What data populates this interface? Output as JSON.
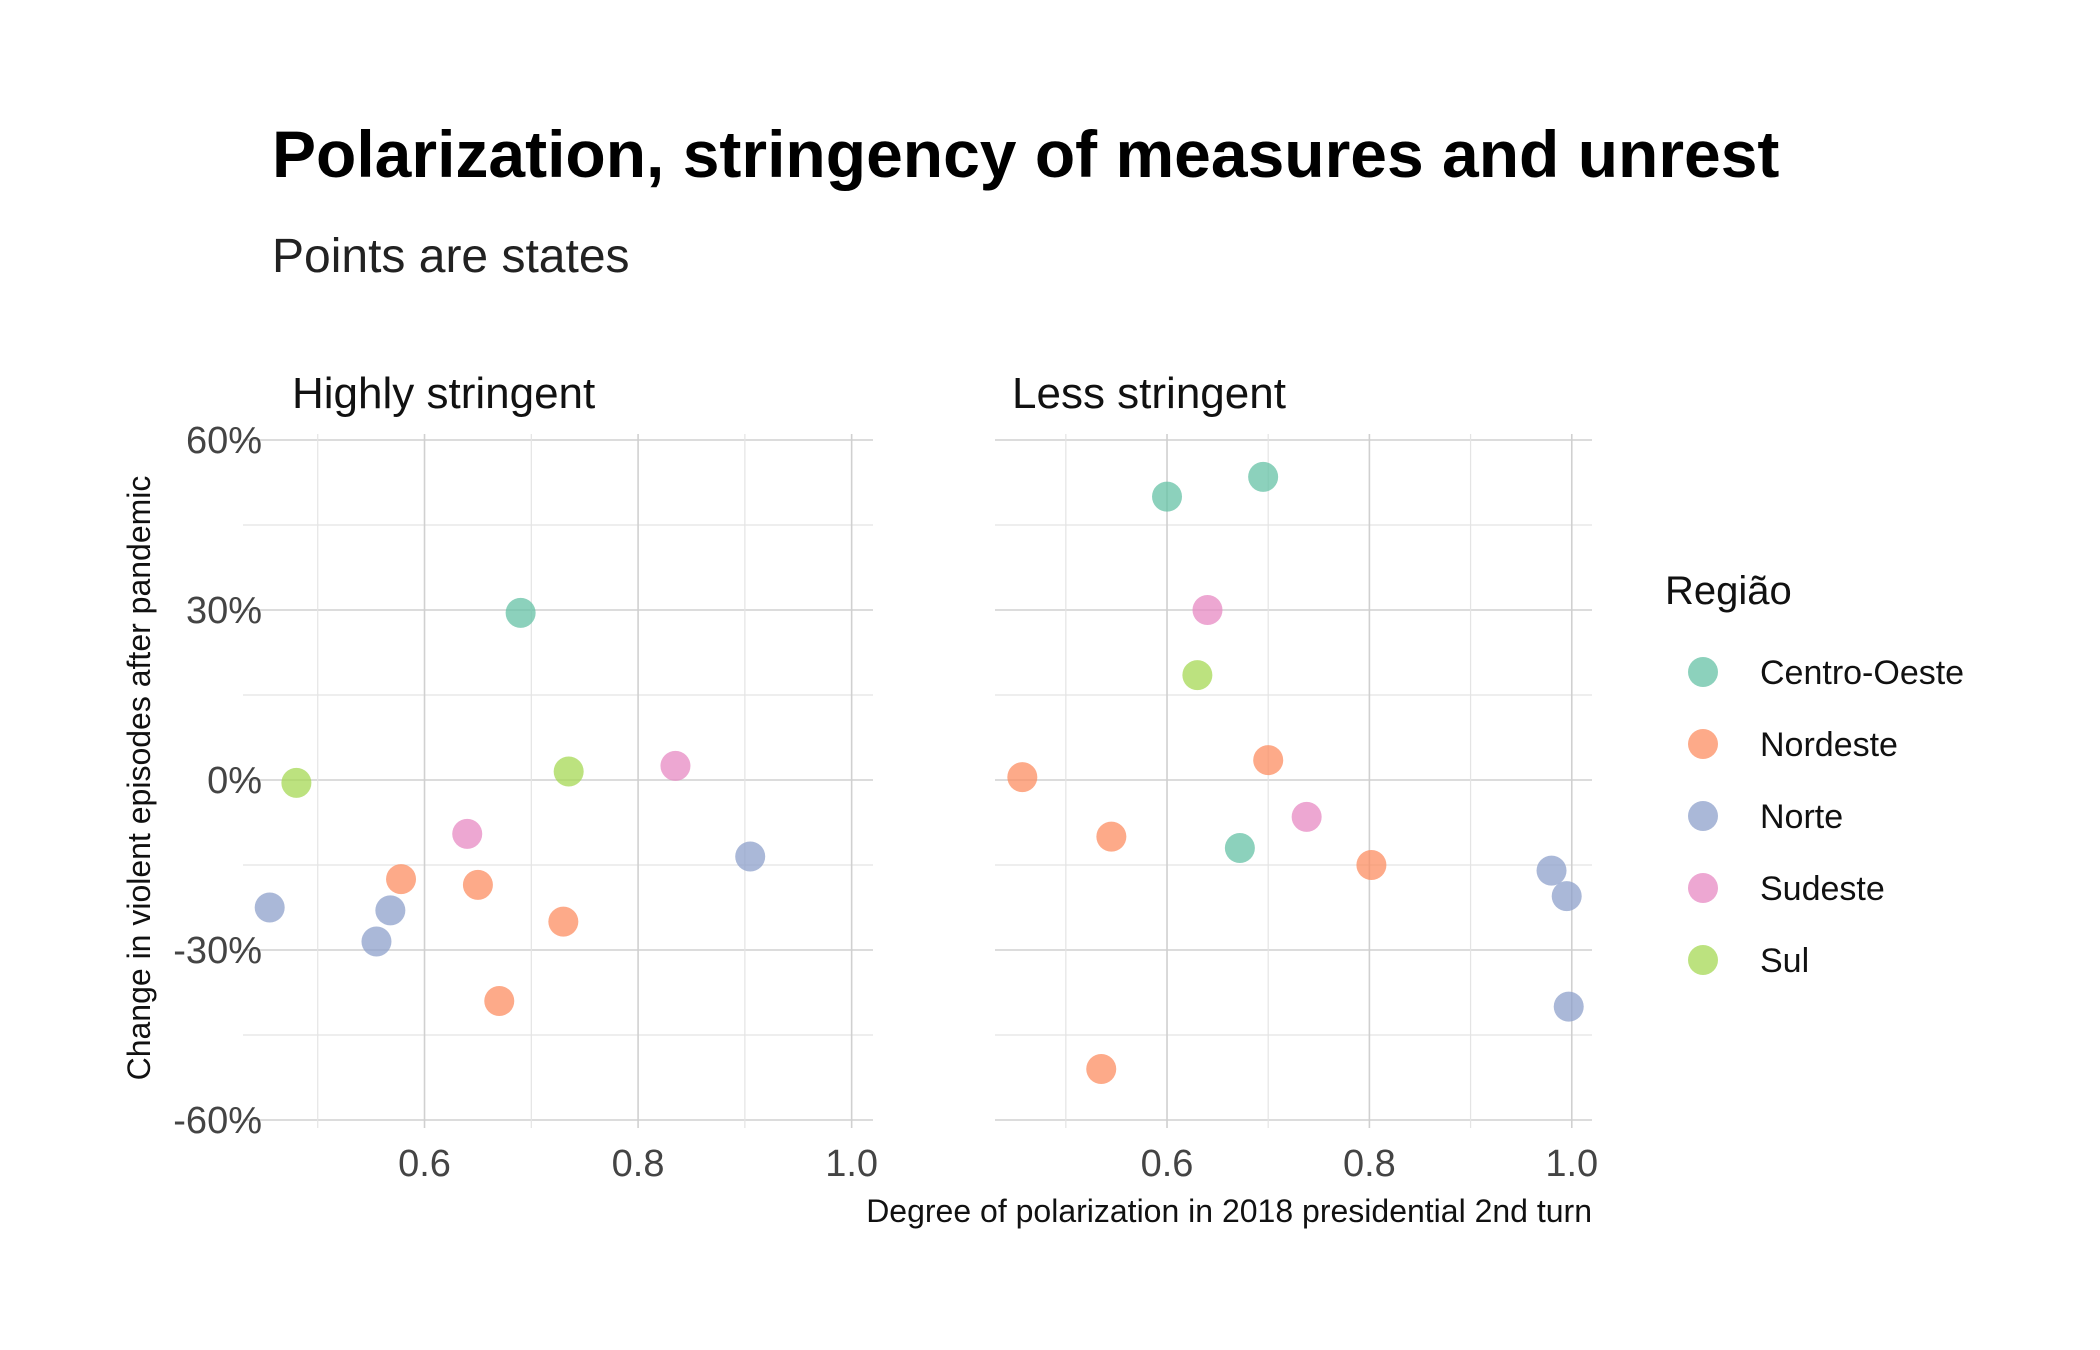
{
  "chart_data": {
    "type": "scatter",
    "title": "Polarization, stringency of measures and unrest",
    "subtitle": "Points are states",
    "xlabel": "Degree of polarization in 2018 presidential 2nd turn",
    "ylabel": "Change in violent episodes after pandemic",
    "xlim": [
      0.43,
      1.02
    ],
    "ylim": [
      -0.6,
      0.6
    ],
    "x_ticks": [
      0.6,
      0.8,
      1.0
    ],
    "x_tick_labels": [
      "0.6",
      "0.8",
      "1.0"
    ],
    "y_ticks": [
      -0.6,
      -0.3,
      0,
      0.3,
      0.6
    ],
    "y_tick_labels": [
      "-60%",
      "-30%",
      "0%",
      "30%",
      "60%"
    ],
    "grid": true,
    "legend": {
      "title": "Região",
      "placement": "right",
      "items": [
        {
          "name": "Centro-Oeste",
          "color": "#66c2a5"
        },
        {
          "name": "Nordeste",
          "color": "#fc8d62"
        },
        {
          "name": "Norte",
          "color": "#8da0cb"
        },
        {
          "name": "Sudeste",
          "color": "#e78ac3"
        },
        {
          "name": "Sul",
          "color": "#a6d854"
        }
      ]
    },
    "panels": [
      {
        "label": "Highly stringent",
        "points": [
          {
            "x": 0.69,
            "y": 0.295,
            "region": "Centro-Oeste"
          },
          {
            "x": 0.48,
            "y": -0.005,
            "region": "Sul"
          },
          {
            "x": 0.735,
            "y": 0.015,
            "region": "Sul"
          },
          {
            "x": 0.835,
            "y": 0.025,
            "region": "Sudeste"
          },
          {
            "x": 0.64,
            "y": -0.095,
            "region": "Sudeste"
          },
          {
            "x": 0.905,
            "y": -0.135,
            "region": "Norte"
          },
          {
            "x": 0.578,
            "y": -0.175,
            "region": "Nordeste"
          },
          {
            "x": 0.65,
            "y": -0.185,
            "region": "Nordeste"
          },
          {
            "x": 0.455,
            "y": -0.225,
            "region": "Norte"
          },
          {
            "x": 0.568,
            "y": -0.23,
            "region": "Norte"
          },
          {
            "x": 0.73,
            "y": -0.25,
            "region": "Nordeste"
          },
          {
            "x": 0.555,
            "y": -0.285,
            "region": "Norte"
          },
          {
            "x": 0.67,
            "y": -0.39,
            "region": "Nordeste"
          }
        ]
      },
      {
        "label": "Less stringent",
        "points": [
          {
            "x": 0.695,
            "y": 0.535,
            "region": "Centro-Oeste"
          },
          {
            "x": 0.6,
            "y": 0.5,
            "region": "Centro-Oeste"
          },
          {
            "x": 0.64,
            "y": 0.3,
            "region": "Sudeste"
          },
          {
            "x": 0.63,
            "y": 0.185,
            "region": "Sul"
          },
          {
            "x": 0.457,
            "y": 0.005,
            "region": "Nordeste"
          },
          {
            "x": 0.7,
            "y": 0.035,
            "region": "Nordeste"
          },
          {
            "x": 0.738,
            "y": -0.065,
            "region": "Sudeste"
          },
          {
            "x": 0.545,
            "y": -0.1,
            "region": "Nordeste"
          },
          {
            "x": 0.672,
            "y": -0.12,
            "region": "Centro-Oeste"
          },
          {
            "x": 0.802,
            "y": -0.15,
            "region": "Nordeste"
          },
          {
            "x": 0.98,
            "y": -0.16,
            "region": "Norte"
          },
          {
            "x": 0.995,
            "y": -0.205,
            "region": "Norte"
          },
          {
            "x": 0.997,
            "y": -0.4,
            "region": "Norte"
          },
          {
            "x": 0.535,
            "y": -0.51,
            "region": "Nordeste"
          }
        ]
      }
    ]
  }
}
